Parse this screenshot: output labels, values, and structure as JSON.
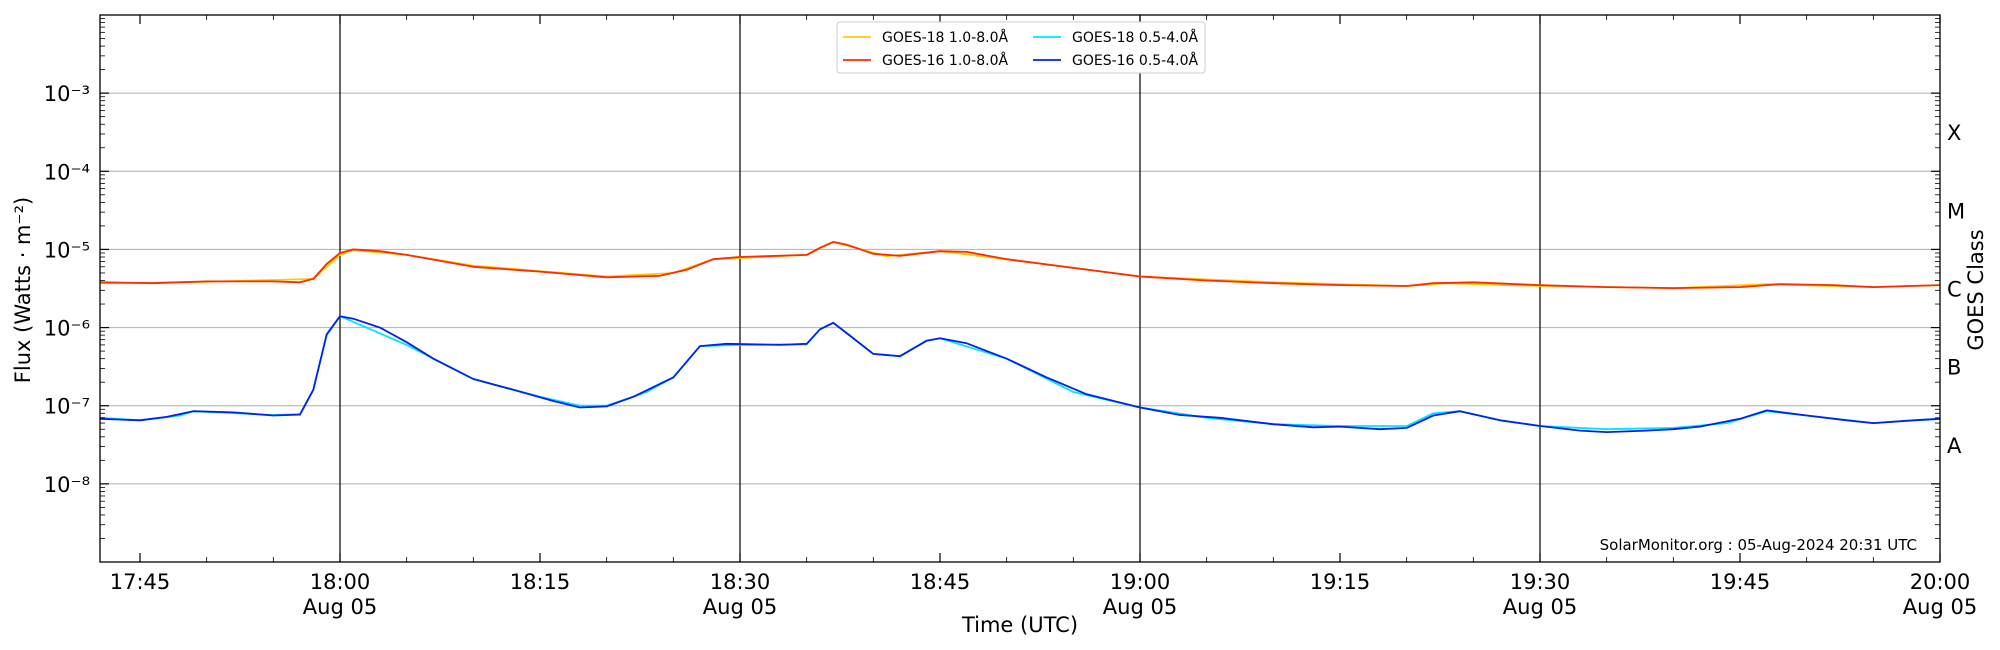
{
  "chart_data": {
    "type": "line",
    "ylabel": "Flux (Watts · m⁻²)",
    "y2label": "GOES Class",
    "xlabel": "Time (UTC)",
    "y_scale": "log",
    "ylim": [
      1e-09,
      0.01
    ],
    "xlim": [
      "2024-08-05 17:42",
      "2024-08-05 20:00"
    ],
    "grid": "horizontal at decades",
    "legend_position": "top-center",
    "y_ticks": [
      {
        "value": 1e-08,
        "label": "10⁻⁸"
      },
      {
        "value": 1e-07,
        "label": "10⁻⁷"
      },
      {
        "value": 1e-06,
        "label": "10⁻⁶"
      },
      {
        "value": 1e-05,
        "label": "10⁻⁵"
      },
      {
        "value": 0.0001,
        "label": "10⁻⁴"
      },
      {
        "value": 0.001,
        "label": "10⁻³"
      }
    ],
    "goes_classes": [
      {
        "label": "A",
        "value": 3.16e-08
      },
      {
        "label": "B",
        "value": 3.16e-07
      },
      {
        "label": "C",
        "value": 3.16e-06
      },
      {
        "label": "M",
        "value": 3.16e-05
      },
      {
        "label": "X",
        "value": 0.000316
      }
    ],
    "x_ticks": [
      {
        "time": "17:45",
        "label": "17:45",
        "sublabel": ""
      },
      {
        "time": "18:00",
        "label": "18:00",
        "sublabel": "Aug 05"
      },
      {
        "time": "18:15",
        "label": "18:15",
        "sublabel": ""
      },
      {
        "time": "18:30",
        "label": "18:30",
        "sublabel": "Aug 05"
      },
      {
        "time": "18:45",
        "label": "18:45",
        "sublabel": ""
      },
      {
        "time": "19:00",
        "label": "19:00",
        "sublabel": "Aug 05"
      },
      {
        "time": "19:15",
        "label": "19:15",
        "sublabel": ""
      },
      {
        "time": "19:30",
        "label": "19:30",
        "sublabel": "Aug 05"
      },
      {
        "time": "19:45",
        "label": "19:45",
        "sublabel": ""
      },
      {
        "time": "20:00",
        "label": "20:00",
        "sublabel": "Aug 05"
      }
    ],
    "vertical_markers": [
      "18:00",
      "18:30",
      "19:00",
      "19:30"
    ],
    "credit": "SolarMonitor.org : 05-Aug-2024 20:31 UTC",
    "series": [
      {
        "name": "GOES-18 1.0-8.0Å",
        "color": "#ffcc00",
        "points": [
          [
            "17:42",
            3.7e-06
          ],
          [
            "17:50",
            3.85e-06
          ],
          [
            "17:58",
            4.2e-06
          ],
          [
            "18:00",
            8.5e-06
          ],
          [
            "18:01",
            9.8e-06
          ],
          [
            "18:05",
            8.5e-06
          ],
          [
            "18:10",
            6.2e-06
          ],
          [
            "18:20",
            4.5e-06
          ],
          [
            "18:25",
            5e-06
          ],
          [
            "18:28",
            7.5e-06
          ],
          [
            "18:35",
            8.5e-06
          ],
          [
            "18:37",
            1.25e-05
          ],
          [
            "18:41",
            8.2e-06
          ],
          [
            "18:45",
            9.5e-06
          ],
          [
            "18:50",
            7.5e-06
          ],
          [
            "19:00",
            4.5e-06
          ],
          [
            "19:10",
            3.8e-06
          ],
          [
            "19:20",
            3.4e-06
          ],
          [
            "19:23",
            3.7e-06
          ],
          [
            "19:30",
            3.4e-06
          ],
          [
            "19:40",
            3.2e-06
          ],
          [
            "19:47",
            3.6e-06
          ],
          [
            "19:55",
            3.3e-06
          ],
          [
            "20:00",
            3.5e-06
          ]
        ]
      },
      {
        "name": "GOES-16 1.0-8.0Å",
        "color": "#ff2a00",
        "points": [
          [
            "17:42",
            3.8e-06
          ],
          [
            "17:46",
            3.7e-06
          ],
          [
            "17:50",
            3.9e-06
          ],
          [
            "17:55",
            3.9e-06
          ],
          [
            "17:57",
            3.8e-06
          ],
          [
            "17:58",
            4.2e-06
          ],
          [
            "17:59",
            6.5e-06
          ],
          [
            "18:00",
            9e-06
          ],
          [
            "18:01",
            1e-05
          ],
          [
            "18:03",
            9.5e-06
          ],
          [
            "18:05",
            8.5e-06
          ],
          [
            "18:10",
            6e-06
          ],
          [
            "18:15",
            5.2e-06
          ],
          [
            "18:20",
            4.4e-06
          ],
          [
            "18:24",
            4.6e-06
          ],
          [
            "18:26",
            5.5e-06
          ],
          [
            "18:28",
            7.5e-06
          ],
          [
            "18:30",
            8e-06
          ],
          [
            "18:35",
            8.5e-06
          ],
          [
            "18:36",
            1.05e-05
          ],
          [
            "18:37",
            1.25e-05
          ],
          [
            "18:38",
            1.15e-05
          ],
          [
            "18:40",
            8.8e-06
          ],
          [
            "18:42",
            8.3e-06
          ],
          [
            "18:45",
            9.5e-06
          ],
          [
            "18:47",
            9.3e-06
          ],
          [
            "18:50",
            7.5e-06
          ],
          [
            "18:55",
            5.8e-06
          ],
          [
            "19:00",
            4.5e-06
          ],
          [
            "19:05",
            4e-06
          ],
          [
            "19:10",
            3.7e-06
          ],
          [
            "19:15",
            3.5e-06
          ],
          [
            "19:20",
            3.4e-06
          ],
          [
            "19:22",
            3.7e-06
          ],
          [
            "19:25",
            3.8e-06
          ],
          [
            "19:30",
            3.5e-06
          ],
          [
            "19:35",
            3.3e-06
          ],
          [
            "19:40",
            3.2e-06
          ],
          [
            "19:45",
            3.3e-06
          ],
          [
            "19:48",
            3.6e-06
          ],
          [
            "19:52",
            3.5e-06
          ],
          [
            "19:55",
            3.3e-06
          ],
          [
            "20:00",
            3.5e-06
          ]
        ]
      },
      {
        "name": "GOES-18 0.5-4.0Å",
        "color": "#00e5ff",
        "points": [
          [
            "17:42",
            7e-08
          ],
          [
            "17:45",
            6.5e-08
          ],
          [
            "17:48",
            7.5e-08
          ],
          [
            "17:49",
            8.5e-08
          ],
          [
            "17:55",
            7.6e-08
          ],
          [
            "17:57",
            7.8e-08
          ],
          [
            "17:58",
            1.6e-07
          ],
          [
            "17:59",
            8e-07
          ],
          [
            "18:00",
            1.4e-06
          ],
          [
            "18:05",
            6e-07
          ],
          [
            "18:10",
            2.2e-07
          ],
          [
            "18:15",
            1.3e-07
          ],
          [
            "18:18",
            1e-07
          ],
          [
            "18:20",
            1e-07
          ],
          [
            "18:23",
            1.5e-07
          ],
          [
            "18:25",
            2.3e-07
          ],
          [
            "18:27",
            5.8e-07
          ],
          [
            "18:30",
            6e-07
          ],
          [
            "18:35",
            6.1e-07
          ],
          [
            "18:36",
            9.5e-07
          ],
          [
            "18:37",
            1.15e-06
          ],
          [
            "18:38",
            8.5e-07
          ],
          [
            "18:40",
            4.6e-07
          ],
          [
            "18:42",
            4.3e-07
          ],
          [
            "18:44",
            6.8e-07
          ],
          [
            "18:45",
            7.3e-07
          ],
          [
            "18:50",
            4e-07
          ],
          [
            "18:55",
            1.5e-07
          ],
          [
            "19:00",
            9.5e-08
          ],
          [
            "19:05",
            7e-08
          ],
          [
            "19:10",
            5.8e-08
          ],
          [
            "19:15",
            5.5e-08
          ],
          [
            "19:20",
            5.5e-08
          ],
          [
            "19:22",
            8e-08
          ],
          [
            "19:24",
            8.5e-08
          ],
          [
            "19:27",
            6.5e-08
          ],
          [
            "19:30",
            5.5e-08
          ],
          [
            "19:35",
            5e-08
          ],
          [
            "19:40",
            5.2e-08
          ],
          [
            "19:44",
            6e-08
          ],
          [
            "19:47",
            8.5e-08
          ],
          [
            "19:50",
            7.5e-08
          ],
          [
            "19:55",
            6e-08
          ],
          [
            "20:00",
            6.8e-08
          ]
        ]
      },
      {
        "name": "GOES-16 0.5-4.0Å",
        "color": "#0022ee",
        "points": [
          [
            "17:42",
            6.8e-08
          ],
          [
            "17:45",
            6.5e-08
          ],
          [
            "17:47",
            7.2e-08
          ],
          [
            "17:49",
            8.5e-08
          ],
          [
            "17:52",
            8.2e-08
          ],
          [
            "17:55",
            7.5e-08
          ],
          [
            "17:57",
            7.7e-08
          ],
          [
            "17:58",
            1.6e-07
          ],
          [
            "17:59",
            8.2e-07
          ],
          [
            "18:00",
            1.4e-06
          ],
          [
            "18:01",
            1.3e-06
          ],
          [
            "18:03",
            1e-06
          ],
          [
            "18:05",
            6.5e-07
          ],
          [
            "18:07",
            4e-07
          ],
          [
            "18:10",
            2.2e-07
          ],
          [
            "18:13",
            1.6e-07
          ],
          [
            "18:16",
            1.15e-07
          ],
          [
            "18:18",
            9.5e-08
          ],
          [
            "18:20",
            9.8e-08
          ],
          [
            "18:22",
            1.3e-07
          ],
          [
            "18:25",
            2.3e-07
          ],
          [
            "18:27",
            5.8e-07
          ],
          [
            "18:29",
            6.2e-07
          ],
          [
            "18:33",
            6e-07
          ],
          [
            "18:35",
            6.2e-07
          ],
          [
            "18:36",
            9.5e-07
          ],
          [
            "18:37",
            1.15e-06
          ],
          [
            "18:38",
            8.5e-07
          ],
          [
            "18:40",
            4.6e-07
          ],
          [
            "18:42",
            4.3e-07
          ],
          [
            "18:44",
            6.8e-07
          ],
          [
            "18:45",
            7.3e-07
          ],
          [
            "18:47",
            6.3e-07
          ],
          [
            "18:50",
            4e-07
          ],
          [
            "18:53",
            2.3e-07
          ],
          [
            "18:56",
            1.4e-07
          ],
          [
            "19:00",
            9.5e-08
          ],
          [
            "19:03",
            7.6e-08
          ],
          [
            "19:06",
            7e-08
          ],
          [
            "19:10",
            5.8e-08
          ],
          [
            "19:13",
            5.3e-08
          ],
          [
            "19:15",
            5.4e-08
          ],
          [
            "19:18",
            5e-08
          ],
          [
            "19:20",
            5.2e-08
          ],
          [
            "19:22",
            7.5e-08
          ],
          [
            "19:24",
            8.5e-08
          ],
          [
            "19:27",
            6.5e-08
          ],
          [
            "19:30",
            5.5e-08
          ],
          [
            "19:33",
            4.8e-08
          ],
          [
            "19:35",
            4.6e-08
          ],
          [
            "19:38",
            4.8e-08
          ],
          [
            "19:40",
            5e-08
          ],
          [
            "19:42",
            5.4e-08
          ],
          [
            "19:45",
            6.8e-08
          ],
          [
            "19:47",
            8.7e-08
          ],
          [
            "19:50",
            7.5e-08
          ],
          [
            "19:53",
            6.5e-08
          ],
          [
            "19:55",
            6e-08
          ],
          [
            "19:58",
            6.5e-08
          ],
          [
            "20:00",
            6.8e-08
          ]
        ]
      }
    ]
  }
}
